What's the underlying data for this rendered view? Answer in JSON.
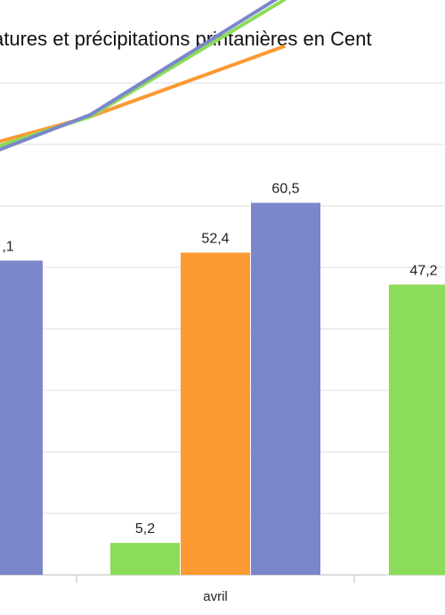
{
  "chart_data": {
    "type": "bar",
    "title": "atures et précipitations printanières en Cent",
    "categories": [
      "",
      "avril",
      ""
    ],
    "y_range_visible": [
      0,
      85
    ],
    "grid": true,
    "bar_series": [
      {
        "color": "#8bdc5a",
        "values": [
          null,
          5.2,
          47.2
        ]
      },
      {
        "color": "#fb9a33",
        "values": [
          null,
          52.4,
          null
        ]
      },
      {
        "color": "#7b87c9",
        "values": [
          51.1,
          60.5,
          null
        ]
      }
    ],
    "data_labels": [
      {
        "text": ",1",
        "category": 0,
        "series": 2
      },
      {
        "text": "5,2",
        "category": 1,
        "series": 0
      },
      {
        "text": "52,4",
        "category": 1,
        "series": 1
      },
      {
        "text": "60,5",
        "category": 1,
        "series": 2
      },
      {
        "text": "47,2",
        "category": 2,
        "series": 0
      }
    ],
    "line_series": [
      {
        "color": "#fb9a33",
        "points": [
          [
            -0.5,
            61.5
          ],
          [
            0.55,
            74.5
          ],
          [
            1.25,
            86.0
          ]
        ]
      },
      {
        "color": "#8bdc5a",
        "points": [
          [
            -0.5,
            59.2
          ],
          [
            0.55,
            74.5
          ],
          [
            1.25,
            93.6
          ]
        ]
      },
      {
        "color": "#7b87c9",
        "points": [
          [
            -0.5,
            56.5
          ],
          [
            0.55,
            74.8
          ],
          [
            1.25,
            94.5
          ]
        ]
      }
    ]
  }
}
